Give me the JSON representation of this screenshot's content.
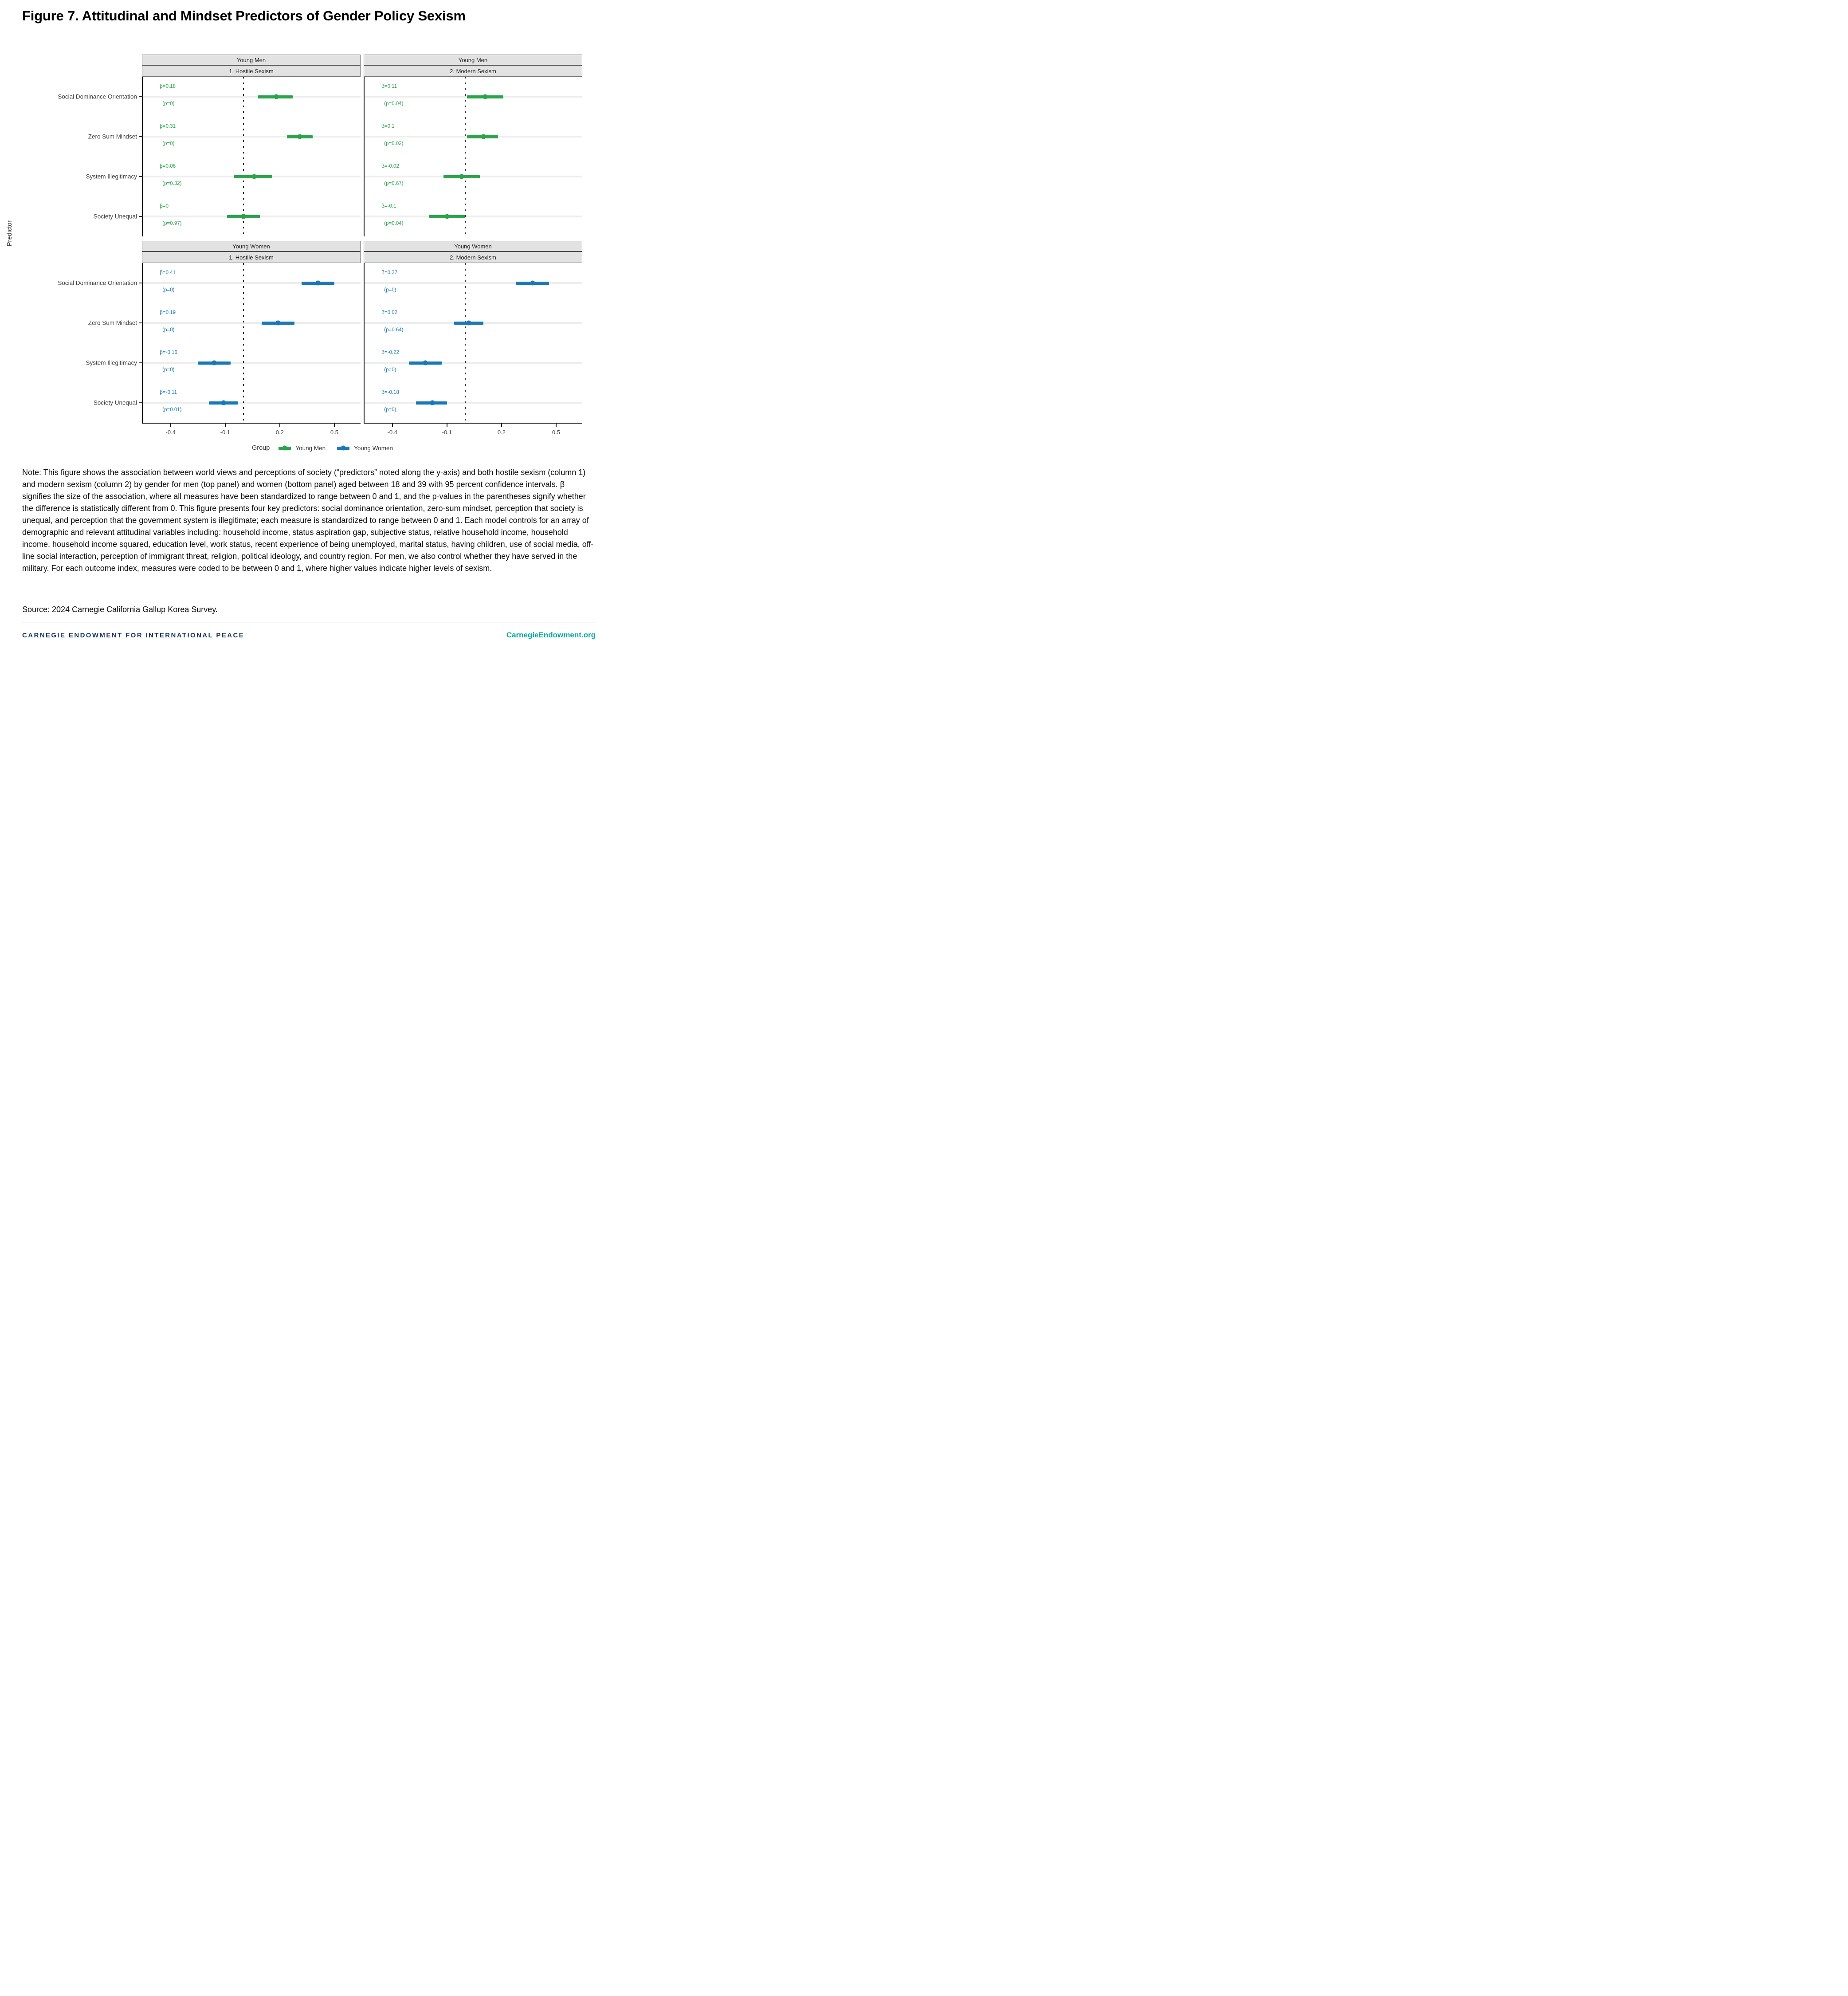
{
  "title": "Figure 7. Attitudinal and Mindset Predictors of Gender Policy Sexism",
  "chart_data": {
    "type": "scatter",
    "subtype": "faceted coefficient (forest) plot with 95% confidence intervals",
    "ylabel": "Predictor",
    "predictors": [
      "Social Dominance Orientation",
      "Zero Sum Mindset",
      "System Illegitimacy",
      "Society Unequal"
    ],
    "xticks": [
      -0.4,
      -0.1,
      0.2,
      0.5
    ],
    "xlim": [
      -0.553,
      0.644
    ],
    "zero_reference_line": 0,
    "grid": "light gray horizontal band per category row; dotted vertical line at 0",
    "legend": {
      "title": "Group",
      "position": "bottom",
      "items": [
        {
          "label": "Young Men",
          "color": "#2AA44A"
        },
        {
          "label": "Young Women",
          "color": "#1878B8"
        }
      ]
    },
    "panels": [
      {
        "group": "Young Men",
        "outcome": "1. Hostile Sexism",
        "color": "#2AA44A",
        "points": [
          {
            "predictor": "Social Dominance Orientation",
            "beta": 0.18,
            "beta_label": "β=0.18",
            "p_label": "(p=0)",
            "ci": [
              0.08,
              0.27
            ]
          },
          {
            "predictor": "Zero Sum Mindset",
            "beta": 0.31,
            "beta_label": "β=0.31",
            "p_label": "(p=0)",
            "ci": [
              0.24,
              0.38
            ]
          },
          {
            "predictor": "System Illegitimacy",
            "beta": 0.06,
            "beta_label": "β=0.06",
            "p_label": "(p=0.32)",
            "ci": [
              -0.05,
              0.16
            ]
          },
          {
            "predictor": "Society Unequal",
            "beta": 0.0,
            "beta_label": "β=0",
            "p_label": "(p=0.97)",
            "ci": [
              -0.09,
              0.09
            ]
          }
        ]
      },
      {
        "group": "Young Men",
        "outcome": "2. Modern Sexism",
        "color": "#2AA44A",
        "points": [
          {
            "predictor": "Social Dominance Orientation",
            "beta": 0.11,
            "beta_label": "β=0.11",
            "p_label": "(p=0.04)",
            "ci": [
              0.01,
              0.21
            ]
          },
          {
            "predictor": "Zero Sum Mindset",
            "beta": 0.1,
            "beta_label": "β=0.1",
            "p_label": "(p=0.02)",
            "ci": [
              0.01,
              0.18
            ]
          },
          {
            "predictor": "System Illegitimacy",
            "beta": -0.02,
            "beta_label": "β=-0.02",
            "p_label": "(p=0.67)",
            "ci": [
              -0.12,
              0.08
            ]
          },
          {
            "predictor": "Society Unequal",
            "beta": -0.1,
            "beta_label": "β=-0.1",
            "p_label": "(p=0.04)",
            "ci": [
              -0.2,
              0.0
            ]
          }
        ]
      },
      {
        "group": "Young Women",
        "outcome": "1. Hostile Sexism",
        "color": "#1878B8",
        "points": [
          {
            "predictor": "Social Dominance Orientation",
            "beta": 0.41,
            "beta_label": "β=0.41",
            "p_label": "(p=0)",
            "ci": [
              0.32,
              0.5
            ]
          },
          {
            "predictor": "Zero Sum Mindset",
            "beta": 0.19,
            "beta_label": "β=0.19",
            "p_label": "(p=0)",
            "ci": [
              0.1,
              0.28
            ]
          },
          {
            "predictor": "System Illegitimacy",
            "beta": -0.16,
            "beta_label": "β=-0.16",
            "p_label": "(p=0)",
            "ci": [
              -0.25,
              -0.07
            ]
          },
          {
            "predictor": "Society Unequal",
            "beta": -0.11,
            "beta_label": "β=-0.11",
            "p_label": "(p=0.01)",
            "ci": [
              -0.19,
              -0.03
            ]
          }
        ]
      },
      {
        "group": "Young Women",
        "outcome": "2. Modern Sexism",
        "color": "#1878B8",
        "points": [
          {
            "predictor": "Social Dominance Orientation",
            "beta": 0.37,
            "beta_label": "β=0.37",
            "p_label": "(p=0)",
            "ci": [
              0.28,
              0.46
            ]
          },
          {
            "predictor": "Zero Sum Mindset",
            "beta": 0.02,
            "beta_label": "β=0.02",
            "p_label": "(p=0.64)",
            "ci": [
              -0.06,
              0.1
            ]
          },
          {
            "predictor": "System Illegitimacy",
            "beta": -0.22,
            "beta_label": "β=-0.22",
            "p_label": "(p=0)",
            "ci": [
              -0.31,
              -0.13
            ]
          },
          {
            "predictor": "Society Unequal",
            "beta": -0.18,
            "beta_label": "β=-0.18",
            "p_label": "(p=0)",
            "ci": [
              -0.27,
              -0.1
            ]
          }
        ]
      }
    ]
  },
  "note": "Note: This figure shows the association between world views and perceptions of society (“predictors” noted along the y-axis) and both hostile sexism (column 1) and modern sexism (column 2) by gender for men (top panel) and women (bottom panel) aged between 18 and 39 with 95 percent confidence intervals. β signifies the size of the association, where all measures have been standardized to range between 0 and 1, and the p-values in the parentheses signify whether the difference is statistically different from 0. This figure presents four key predictors: social dominance orientation, zero-sum mindset, perception that society is unequal, and perception that the government system is illegitimate; each measure is standardized to range between 0 and 1. Each model controls for an array of demographic and relevant attitudinal variables including: household income, status aspiration gap, subjective status, relative household income, household income, household income squared, education level, work status, recent experience of being unemployed, marital status, having children, use of social media, off-line social interaction, perception of immigrant threat, religion, political ideology, and country region. For men, we also control whether they have served in the military. For each outcome index, measures were coded to be between 0 and 1, where higher values indicate higher levels of sexism.",
  "source": "Source: 2024 Carnegie California Gallup Korea Survey.",
  "footer": {
    "left": "CARNEGIE ENDOWMENT FOR INTERNATIONAL PEACE",
    "right": "CarnegieEndowment.org"
  }
}
